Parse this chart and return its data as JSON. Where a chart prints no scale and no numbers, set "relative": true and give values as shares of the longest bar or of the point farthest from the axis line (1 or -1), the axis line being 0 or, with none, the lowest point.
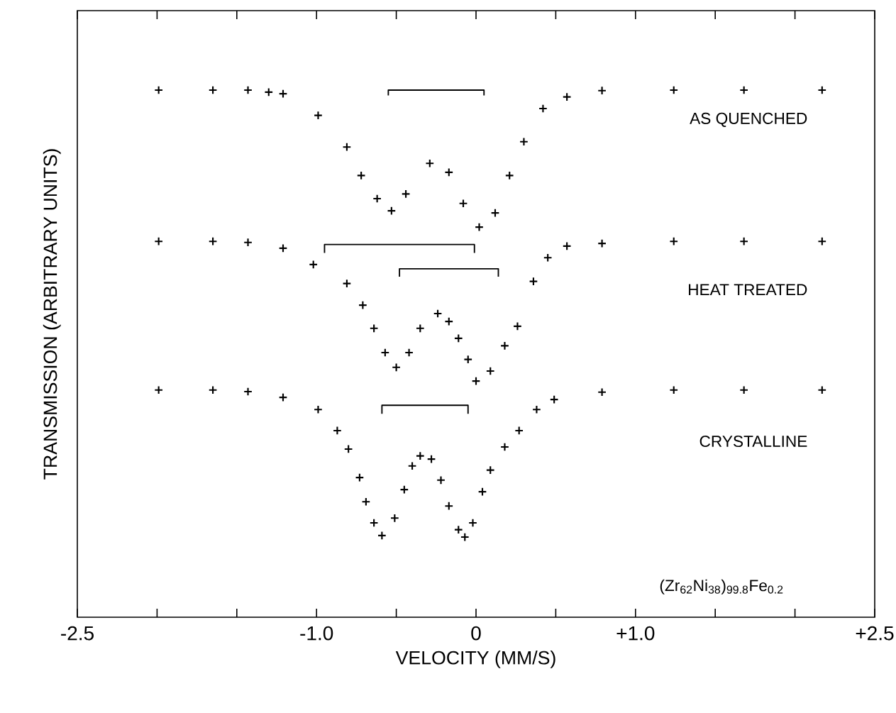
{
  "chart_data": {
    "type": "scatter",
    "xlabel": "VELOCITY (MM/S)",
    "ylabel": "TRANSMISSION (ARBITRARY UNITS)",
    "relative": true,
    "marker": "cross",
    "xlim": [
      -2.5,
      2.5
    ],
    "xticks": [
      {
        "value": -2.5,
        "label": "-2.5"
      },
      {
        "value": -2.0,
        "label": null
      },
      {
        "value": -1.5,
        "label": null
      },
      {
        "value": -1.0,
        "label": "-1.0"
      },
      {
        "value": -0.5,
        "label": null
      },
      0,
      {
        "value": 0.5,
        "label": null
      },
      {
        "value": 1.0,
        "label": "+1.0"
      },
      {
        "value": 1.5,
        "label": null
      },
      {
        "value": 2.0,
        "label": null
      },
      {
        "value": 2.5,
        "label": "+2.5"
      }
    ],
    "annotations": [
      "AS QUENCHED",
      "HEAT TREATED",
      "CRYSTALLINE",
      "(Zr$_{62}$Ni$_{38}$)$_{99.8}$Fe$_{0.2}$"
    ],
    "series": [
      {
        "color": "#000000",
        "x": [
          -1.99,
          -1.65,
          -1.43,
          -1.3,
          -1.21,
          -0.99,
          -0.81,
          -0.72,
          -0.62,
          -0.53,
          -0.44,
          -0.29,
          -0.17,
          -0.08,
          0.02,
          0.12,
          0.21,
          0.3,
          0.42,
          0.57,
          0.79,
          1.24,
          1.68,
          2.17
        ],
        "values": [
          1.0,
          1.0,
          1.0,
          0.996,
          0.993,
          0.952,
          0.892,
          0.838,
          0.794,
          0.771,
          0.803,
          0.861,
          0.844,
          0.785,
          0.74,
          0.767,
          0.838,
          0.902,
          0.965,
          0.987,
          0.999,
          1.0,
          1.0,
          1.0
        ]
      },
      {
        "color": "#000000",
        "x": [
          -1.99,
          -1.65,
          -1.43,
          -1.21,
          -1.02,
          -0.81,
          -0.71,
          -0.64,
          -0.57,
          -0.5,
          -0.42,
          -0.35,
          -0.24,
          -0.17,
          -0.11,
          -0.05,
          0.0,
          0.09,
          0.18,
          0.26,
          0.36,
          0.45,
          0.57,
          0.79,
          1.24,
          1.68,
          2.17
        ],
        "values": [
          0.713,
          0.713,
          0.711,
          0.7,
          0.669,
          0.633,
          0.592,
          0.548,
          0.502,
          0.474,
          0.502,
          0.548,
          0.576,
          0.561,
          0.529,
          0.489,
          0.448,
          0.467,
          0.515,
          0.552,
          0.637,
          0.682,
          0.704,
          0.709,
          0.713,
          0.713,
          0.713
        ]
      },
      {
        "color": "#000000",
        "x": [
          -1.99,
          -1.65,
          -1.43,
          -1.21,
          -0.99,
          -0.87,
          -0.8,
          -0.73,
          -0.69,
          -0.64,
          -0.59,
          -0.51,
          -0.45,
          -0.4,
          -0.35,
          -0.28,
          -0.22,
          -0.17,
          -0.11,
          -0.07,
          -0.02,
          0.04,
          0.09,
          0.18,
          0.27,
          0.38,
          0.49,
          0.79,
          1.24,
          1.68,
          2.17
        ],
        "values": [
          0.431,
          0.431,
          0.428,
          0.417,
          0.394,
          0.354,
          0.319,
          0.265,
          0.219,
          0.179,
          0.155,
          0.188,
          0.242,
          0.287,
          0.306,
          0.3,
          0.26,
          0.211,
          0.166,
          0.152,
          0.179,
          0.238,
          0.279,
          0.323,
          0.354,
          0.394,
          0.413,
          0.427,
          0.431,
          0.431,
          0.431
        ]
      },
      {
        "type": "line",
        "marker": "none",
        "color": "#000000",
        "x": [
          -0.55,
          -0.55,
          0.05,
          0.05
        ],
        "values": [
          0.99,
          1.0,
          1.0,
          0.99
        ]
      },
      {
        "type": "line",
        "marker": "none",
        "color": "#000000",
        "x": [
          -0.95,
          -0.95,
          -0.01,
          -0.01
        ],
        "values": [
          0.691,
          0.707,
          0.707,
          0.691
        ]
      },
      {
        "type": "line",
        "marker": "none",
        "color": "#000000",
        "x": [
          -0.48,
          -0.48,
          0.14,
          0.14
        ],
        "values": [
          0.646,
          0.661,
          0.661,
          0.646
        ]
      },
      {
        "type": "line",
        "marker": "none",
        "color": "#000000",
        "x": [
          -0.59,
          -0.59,
          -0.05,
          -0.05
        ],
        "values": [
          0.386,
          0.402,
          0.402,
          0.386
        ]
      }
    ]
  }
}
